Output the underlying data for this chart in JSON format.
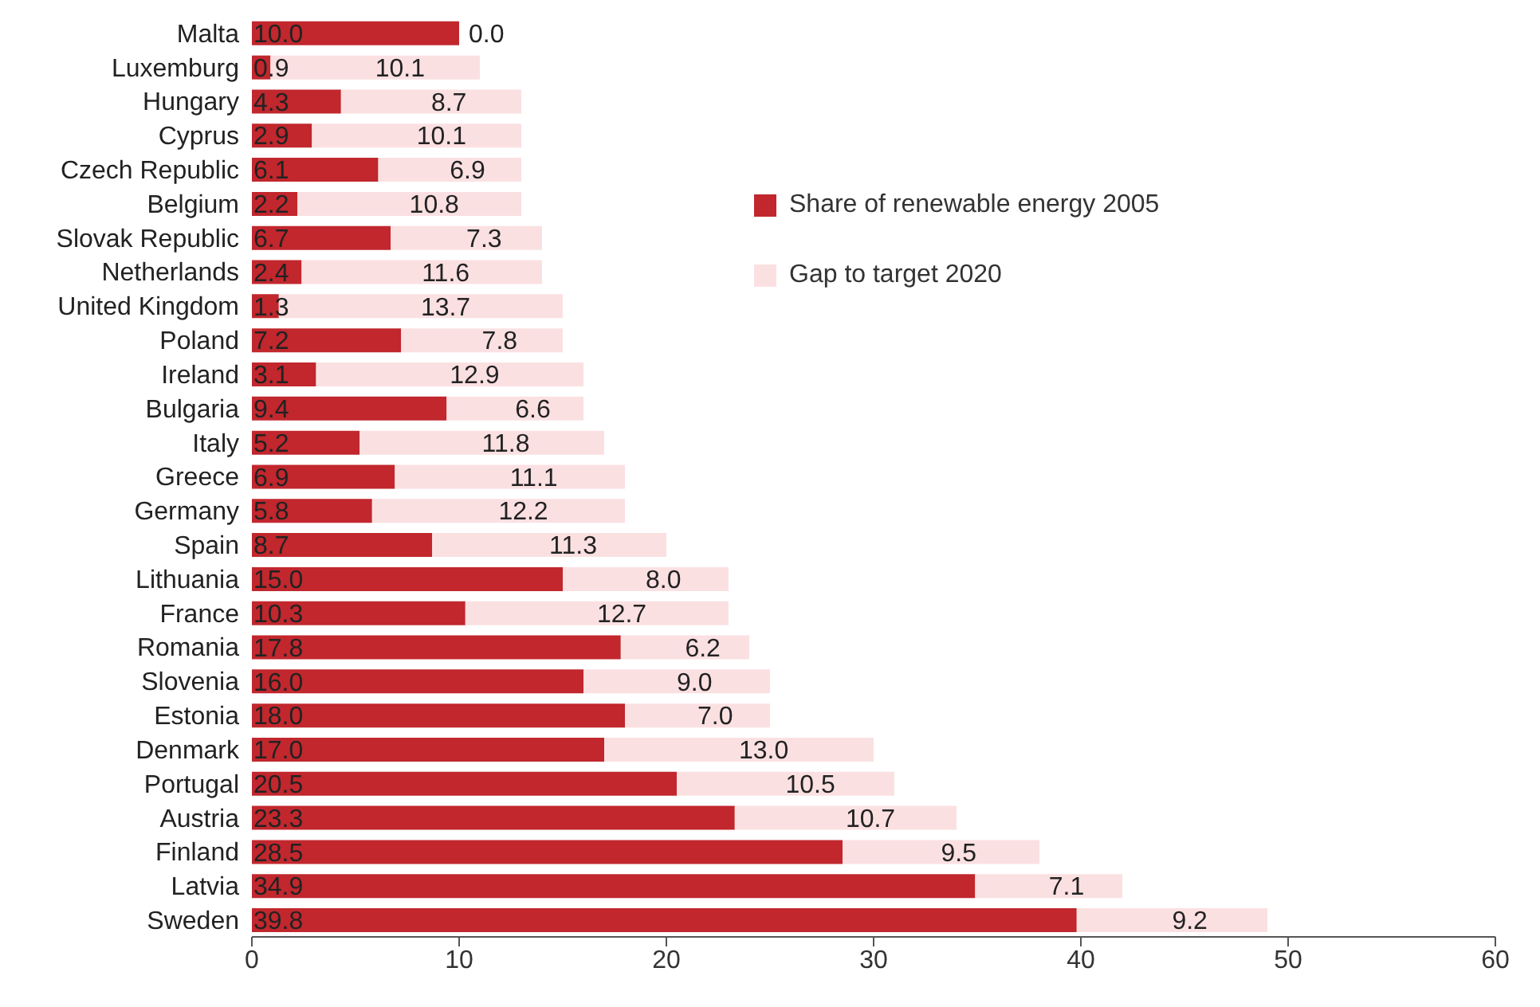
{
  "chart_data": {
    "type": "bar",
    "orientation": "horizontal",
    "stacked": true,
    "categories": [
      "Malta",
      "Luxemburg",
      "Hungary",
      "Cyprus",
      "Czech Republic",
      "Belgium",
      "Slovak Republic",
      "Netherlands",
      "United Kingdom",
      "Poland",
      "Ireland",
      "Bulgaria",
      "Italy",
      "Greece",
      "Germany",
      "Spain",
      "Lithuania",
      "France",
      "Romania",
      "Slovenia",
      "Estonia",
      "Denmark",
      "Portugal",
      "Austria",
      "Finland",
      "Latvia",
      "Sweden"
    ],
    "series": [
      {
        "name": "Share of renewable energy 2005",
        "color": "#c1272d",
        "values": [
          10.0,
          0.9,
          4.3,
          2.9,
          6.1,
          2.2,
          6.7,
          2.4,
          1.3,
          7.2,
          3.1,
          9.4,
          5.2,
          6.9,
          5.8,
          8.7,
          15.0,
          10.3,
          17.8,
          16.0,
          18.0,
          17.0,
          20.5,
          23.3,
          28.5,
          34.9,
          39.8
        ],
        "value_labels": [
          "10.0",
          "0.9",
          "4.3",
          "2.9",
          "6.1",
          "2.2",
          "6.7",
          "2.4",
          "1.3",
          "7.2",
          "3.1",
          "9.4",
          "5.2",
          "6.9",
          "5.8",
          "8.7",
          "15.0",
          "10.3",
          "17.8",
          "16.0",
          "18.0",
          "17.0",
          "20.5",
          "23.3",
          "28.5",
          "34.9",
          "39.8"
        ]
      },
      {
        "name": "Gap to target 2020",
        "color": "#fbe0e2",
        "values": [
          0.0,
          10.1,
          8.7,
          10.1,
          6.9,
          10.8,
          7.3,
          11.6,
          13.7,
          7.8,
          12.9,
          6.6,
          11.8,
          11.1,
          12.2,
          11.3,
          8.0,
          12.7,
          6.2,
          9.0,
          7.0,
          13.0,
          10.5,
          10.7,
          9.5,
          7.1,
          9.2
        ],
        "value_labels": [
          "0.0",
          "10.1",
          "8.7",
          "10.1",
          "6.9",
          "10.8",
          "7.3",
          "11.6",
          "13.7",
          "7.8",
          "12.9",
          "6.6",
          "11.8",
          "11.1",
          "12.2",
          "11.3",
          "8.0",
          "12.7",
          "6.2",
          "9.0",
          "7.0",
          "13.0",
          "10.5",
          "10.7",
          "9.5",
          "7.1",
          "9.2"
        ]
      }
    ],
    "xlim": [
      0,
      60
    ],
    "xticks": [
      0,
      10,
      20,
      30,
      40,
      50,
      60
    ],
    "legend": "top right"
  }
}
